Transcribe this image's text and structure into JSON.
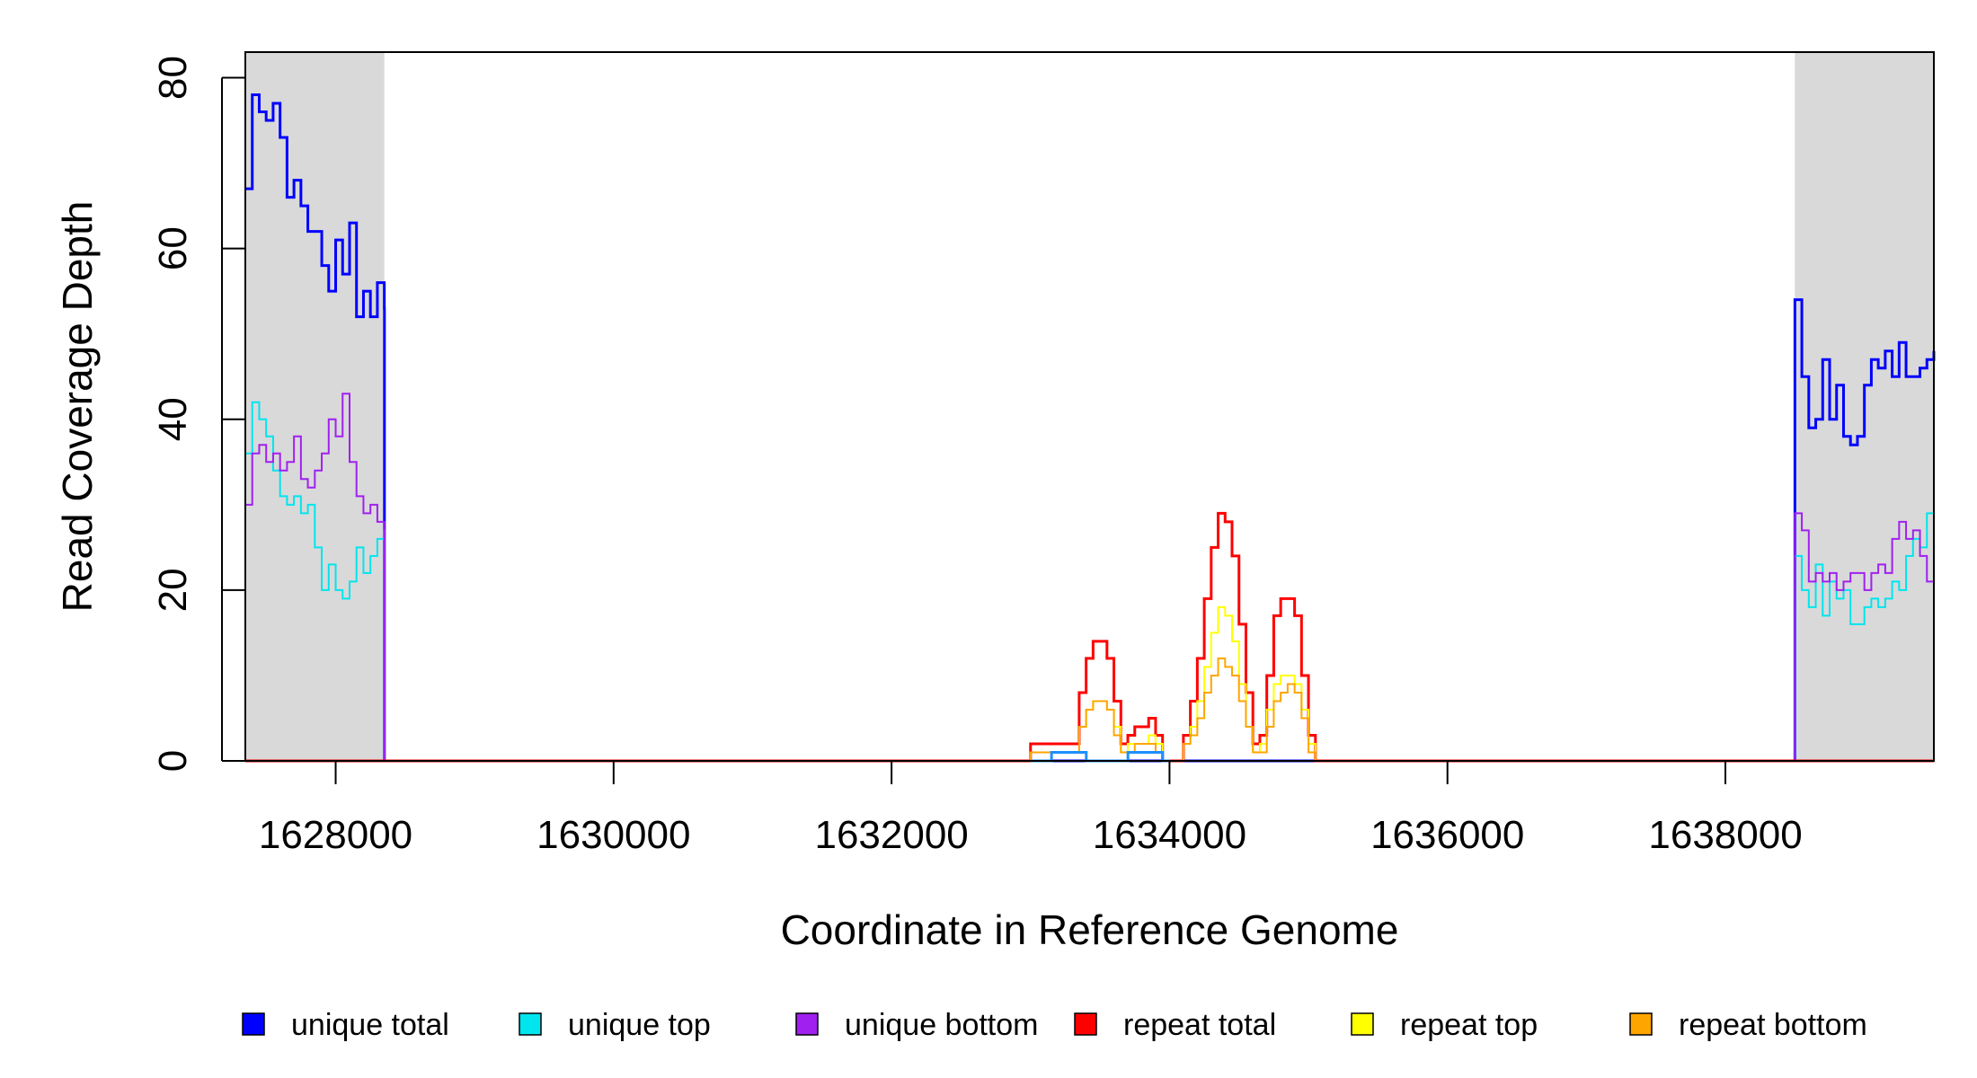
{
  "chart_data": {
    "type": "line",
    "title": "",
    "xlabel": "Coordinate in Reference Genome",
    "ylabel": "Read Coverage Depth",
    "xlim": [
      1627350,
      1639500
    ],
    "ylim": [
      0,
      83
    ],
    "xticks": [
      1628000,
      1630000,
      1632000,
      1634000,
      1636000,
      1638000
    ],
    "yticks": [
      0,
      20,
      40,
      60,
      80
    ],
    "grid": false,
    "legend_position": "bottom",
    "shaded_regions": [
      {
        "x_start": 1627350,
        "x_end": 1628350,
        "color": "#d9d9d9"
      },
      {
        "x_start": 1638500,
        "x_end": 1639500,
        "color": "#d9d9d9"
      }
    ],
    "series": [
      {
        "name": "unique total",
        "color": "#0000ff",
        "width": 3,
        "x": [
          1627350,
          1627400,
          1627450,
          1627500,
          1627550,
          1627600,
          1627650,
          1627700,
          1627750,
          1627800,
          1627850,
          1627900,
          1627950,
          1628000,
          1628050,
          1628100,
          1628150,
          1628200,
          1628250,
          1628300,
          1628350,
          1628351,
          1634000,
          1638499,
          1638500,
          1638550,
          1638600,
          1638650,
          1638700,
          1638750,
          1638800,
          1638850,
          1638900,
          1638950,
          1639000,
          1639050,
          1639100,
          1639150,
          1639200,
          1639250,
          1639300,
          1639350,
          1639400,
          1639450,
          1639500
        ],
        "y": [
          67,
          78,
          76,
          75,
          77,
          73,
          66,
          68,
          65,
          62,
          62,
          58,
          55,
          61,
          57,
          63,
          52,
          55,
          52,
          56,
          53,
          0,
          0,
          0,
          54,
          45,
          39,
          40,
          47,
          40,
          44,
          38,
          37,
          38,
          44,
          47,
          46,
          48,
          45,
          49,
          45,
          45,
          46,
          47,
          48
        ]
      },
      {
        "name": "unique top",
        "color": "#00e5ee",
        "width": 2,
        "x": [
          1627350,
          1627400,
          1627450,
          1627500,
          1627550,
          1627600,
          1627650,
          1627700,
          1627750,
          1627800,
          1627850,
          1627900,
          1627950,
          1628000,
          1628050,
          1628100,
          1628150,
          1628200,
          1628250,
          1628300,
          1628350,
          1628351,
          1634000,
          1638499,
          1638500,
          1638550,
          1638600,
          1638650,
          1638700,
          1638750,
          1638800,
          1638850,
          1638900,
          1638950,
          1639000,
          1639050,
          1639100,
          1639150,
          1639200,
          1639250,
          1639300,
          1639350,
          1639400,
          1639450,
          1639500
        ],
        "y": [
          36,
          42,
          40,
          38,
          34,
          31,
          30,
          31,
          29,
          30,
          25,
          20,
          23,
          20,
          19,
          21,
          25,
          22,
          24,
          26,
          27,
          0,
          0,
          0,
          24,
          20,
          18,
          23,
          17,
          21,
          19,
          20,
          16,
          16,
          18,
          19,
          18,
          19,
          21,
          20,
          24,
          26,
          25,
          29,
          33
        ]
      },
      {
        "name": "unique bottom",
        "color": "#a020f0",
        "width": 2,
        "x": [
          1627350,
          1627400,
          1627450,
          1627500,
          1627550,
          1627600,
          1627650,
          1627700,
          1627750,
          1627800,
          1627850,
          1627900,
          1627950,
          1628000,
          1628050,
          1628100,
          1628150,
          1628200,
          1628250,
          1628300,
          1628350,
          1628351,
          1634000,
          1638499,
          1638500,
          1638550,
          1638600,
          1638650,
          1638700,
          1638750,
          1638800,
          1638850,
          1638900,
          1638950,
          1639000,
          1639050,
          1639100,
          1639150,
          1639200,
          1639250,
          1639300,
          1639350,
          1639400,
          1639450,
          1639500
        ],
        "y": [
          30,
          36,
          37,
          35,
          36,
          34,
          35,
          38,
          33,
          32,
          34,
          36,
          40,
          38,
          43,
          35,
          31,
          29,
          30,
          28,
          27,
          0,
          0,
          0,
          29,
          27,
          21,
          22,
          21,
          22,
          20,
          21,
          22,
          22,
          20,
          22,
          23,
          22,
          26,
          28,
          26,
          27,
          24,
          21,
          16
        ]
      },
      {
        "name": "repeat total",
        "color": "#ff0000",
        "width": 3,
        "x": [
          1627350,
          1632950,
          1633000,
          1633150,
          1633300,
          1633350,
          1633400,
          1633450,
          1633500,
          1633550,
          1633600,
          1633650,
          1633700,
          1633750,
          1633800,
          1633850,
          1633900,
          1633950,
          1634000,
          1634050,
          1634100,
          1634150,
          1634200,
          1634250,
          1634300,
          1634350,
          1634400,
          1634450,
          1634500,
          1634550,
          1634600,
          1634650,
          1634700,
          1634750,
          1634800,
          1634850,
          1634900,
          1634950,
          1635000,
          1635050,
          1639500
        ],
        "y": [
          0,
          0,
          2,
          2,
          2,
          8,
          12,
          14,
          14,
          12,
          7,
          2,
          3,
          4,
          4,
          5,
          3,
          0,
          0,
          0,
          3,
          7,
          12,
          19,
          25,
          29,
          28,
          24,
          16,
          8,
          2,
          3,
          10,
          17,
          19,
          19,
          17,
          10,
          3,
          0,
          0
        ]
      },
      {
        "name": "repeat top",
        "color": "#ffff00",
        "width": 2,
        "x": [
          1627350,
          1632950,
          1633000,
          1633150,
          1633300,
          1633350,
          1633400,
          1633450,
          1633500,
          1633550,
          1633600,
          1633650,
          1633700,
          1633750,
          1633800,
          1633850,
          1633900,
          1633950,
          1634000,
          1634050,
          1634100,
          1634150,
          1634200,
          1634250,
          1634300,
          1634350,
          1634400,
          1634450,
          1634500,
          1634550,
          1634600,
          1634650,
          1634700,
          1634750,
          1634800,
          1634850,
          1634900,
          1634950,
          1635000,
          1635050,
          1639500
        ],
        "y": [
          0,
          0,
          1,
          1,
          1,
          4,
          6,
          7,
          7,
          6,
          4,
          1,
          2,
          2,
          2,
          3,
          2,
          0,
          0,
          0,
          2,
          4,
          7,
          11,
          15,
          18,
          17,
          14,
          9,
          4,
          1,
          2,
          6,
          9,
          10,
          10,
          9,
          6,
          2,
          0,
          0
        ]
      },
      {
        "name": "repeat bottom",
        "color": "#ffa500",
        "width": 2,
        "x": [
          1627350,
          1632950,
          1633000,
          1633150,
          1633300,
          1633350,
          1633400,
          1633450,
          1633500,
          1633550,
          1633600,
          1633650,
          1633700,
          1633750,
          1633800,
          1633850,
          1633900,
          1633950,
          1634000,
          1634050,
          1634100,
          1634150,
          1634200,
          1634250,
          1634300,
          1634350,
          1634400,
          1634450,
          1634500,
          1634550,
          1634600,
          1634650,
          1634700,
          1634750,
          1634800,
          1634850,
          1634900,
          1634950,
          1635000,
          1635050,
          1639500
        ],
        "y": [
          0,
          0,
          1,
          1,
          1,
          4,
          6,
          7,
          7,
          6,
          3,
          1,
          1,
          2,
          2,
          2,
          1,
          0,
          0,
          0,
          2,
          3,
          5,
          8,
          10,
          12,
          11,
          10,
          7,
          4,
          1,
          1,
          4,
          7,
          8,
          9,
          8,
          5,
          1,
          0,
          0
        ]
      },
      {
        "name": "",
        "color": "#1e90ff",
        "width": 3,
        "x": [
          1633000,
          1633150,
          1633151,
          1633400,
          1633401,
          1633700,
          1633701,
          1633950,
          1633951,
          1634000
        ],
        "y": [
          0,
          0,
          1,
          1,
          0,
          0,
          1,
          1,
          0,
          0
        ]
      }
    ],
    "legend": [
      {
        "label": "unique total",
        "color": "#0000ff"
      },
      {
        "label": "unique top",
        "color": "#00e5ee"
      },
      {
        "label": "unique bottom",
        "color": "#a020f0"
      },
      {
        "label": "repeat total",
        "color": "#ff0000"
      },
      {
        "label": "repeat top",
        "color": "#ffff00"
      },
      {
        "label": "repeat bottom",
        "color": "#ffa500"
      }
    ]
  }
}
